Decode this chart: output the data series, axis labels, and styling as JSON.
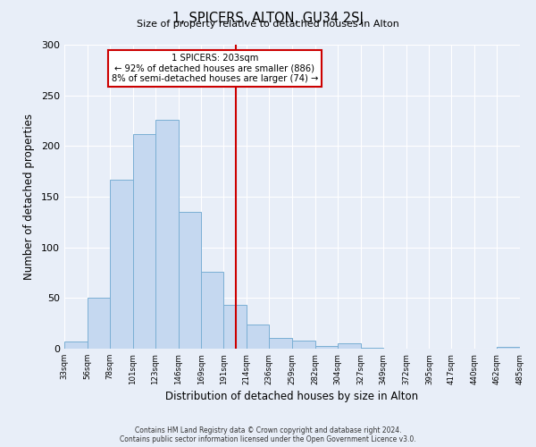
{
  "title": "1, SPICERS, ALTON, GU34 2SJ",
  "subtitle": "Size of property relative to detached houses in Alton",
  "xlabel": "Distribution of detached houses by size in Alton",
  "ylabel": "Number of detached properties",
  "bin_edges": [
    33,
    56,
    78,
    101,
    123,
    146,
    169,
    191,
    214,
    236,
    259,
    282,
    304,
    327,
    349,
    372,
    395,
    417,
    440,
    462,
    485
  ],
  "bin_counts": [
    7,
    50,
    167,
    212,
    226,
    135,
    76,
    43,
    24,
    11,
    8,
    3,
    5,
    1,
    0,
    0,
    0,
    0,
    0,
    2
  ],
  "bar_facecolor": "#c5d8f0",
  "bar_edgecolor": "#7aafd4",
  "vline_x": 203,
  "vline_color": "#cc0000",
  "annotation_title": "1 SPICERS: 203sqm",
  "annotation_line1": "← 92% of detached houses are smaller (886)",
  "annotation_line2": "8% of semi-detached houses are larger (74) →",
  "annotation_box_edgecolor": "#cc0000",
  "annotation_box_facecolor": "#ffffff",
  "ylim": [
    0,
    300
  ],
  "yticks": [
    0,
    50,
    100,
    150,
    200,
    250,
    300
  ],
  "tick_labels": [
    "33sqm",
    "56sqm",
    "78sqm",
    "101sqm",
    "123sqm",
    "146sqm",
    "169sqm",
    "191sqm",
    "214sqm",
    "236sqm",
    "259sqm",
    "282sqm",
    "304sqm",
    "327sqm",
    "349sqm",
    "372sqm",
    "395sqm",
    "417sqm",
    "440sqm",
    "462sqm",
    "485sqm"
  ],
  "footer_line1": "Contains HM Land Registry data © Crown copyright and database right 2024.",
  "footer_line2": "Contains public sector information licensed under the Open Government Licence v3.0.",
  "background_color": "#e8eef8"
}
